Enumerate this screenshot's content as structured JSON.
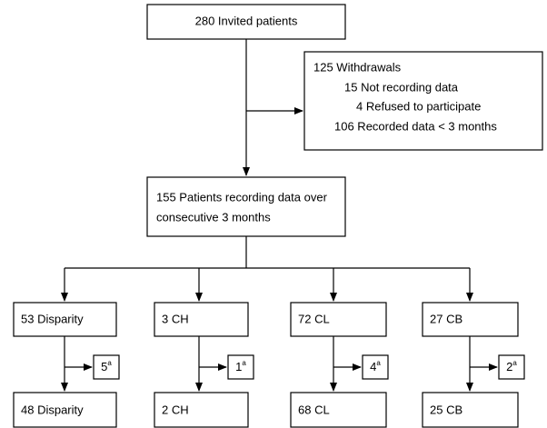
{
  "nodes": {
    "invited": "280 Invited patients",
    "withdrawals": {
      "title": "125 Withdrawals",
      "reasons": [
        "15 Not recording data",
        "4 Refused to participate",
        "106 Recorded data < 3 months"
      ]
    },
    "recording": [
      "155 Patients recording data over",
      "consecutive 3 months"
    ]
  },
  "groups": [
    {
      "initial": "53 Disparity",
      "excluded": {
        "count": "5",
        "note": "a"
      },
      "final": "48 Disparity"
    },
    {
      "initial": "3 CH",
      "excluded": {
        "count": "1",
        "note": "a"
      },
      "final": "2 CH"
    },
    {
      "initial": "72 CL",
      "excluded": {
        "count": "4",
        "note": "a"
      },
      "final": "68 CL"
    },
    {
      "initial": "27 CB",
      "excluded": {
        "count": "2",
        "note": "a"
      },
      "final": "25 CB"
    }
  ]
}
